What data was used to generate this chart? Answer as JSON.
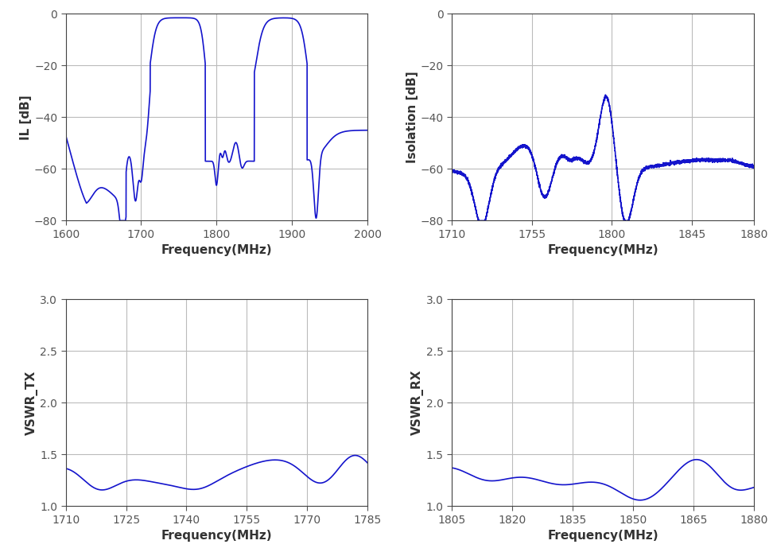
{
  "line_color": "#1414CC",
  "background_color": "#ffffff",
  "grid_color": "#bbbbbb",
  "tick_color": "#555555",
  "label_color": "#333333",
  "plot1": {
    "xlabel": "Frequency(MHz)",
    "ylabel": "IL [dB]",
    "xlim": [
      1600,
      2000
    ],
    "ylim": [
      -80,
      0
    ],
    "yticks": [
      0,
      -20,
      -40,
      -60,
      -80
    ],
    "xticks": [
      1600,
      1700,
      1800,
      1900,
      2000
    ]
  },
  "plot2": {
    "xlabel": "Frequency(MHz)",
    "ylabel": "Isolation [dB]",
    "xlim": [
      1710,
      1880
    ],
    "ylim": [
      -80,
      0
    ],
    "yticks": [
      0,
      -20,
      -40,
      -60,
      -80
    ],
    "xticks": [
      1710,
      1755,
      1800,
      1845,
      1880
    ]
  },
  "plot3": {
    "xlabel": "Frequency(MHz)",
    "ylabel": "VSWR_TX",
    "xlim": [
      1710,
      1785
    ],
    "ylim": [
      1.0,
      3.0
    ],
    "yticks": [
      1.0,
      1.5,
      2.0,
      2.5,
      3.0
    ],
    "xticks": [
      1710,
      1725,
      1740,
      1755,
      1770,
      1785
    ]
  },
  "plot4": {
    "xlabel": "Frequency(MHz)",
    "ylabel": "VSWR_RX",
    "xlim": [
      1805,
      1880
    ],
    "ylim": [
      1.0,
      3.0
    ],
    "yticks": [
      1.0,
      1.5,
      2.0,
      2.5,
      3.0
    ],
    "xticks": [
      1805,
      1820,
      1835,
      1850,
      1865,
      1880
    ]
  }
}
